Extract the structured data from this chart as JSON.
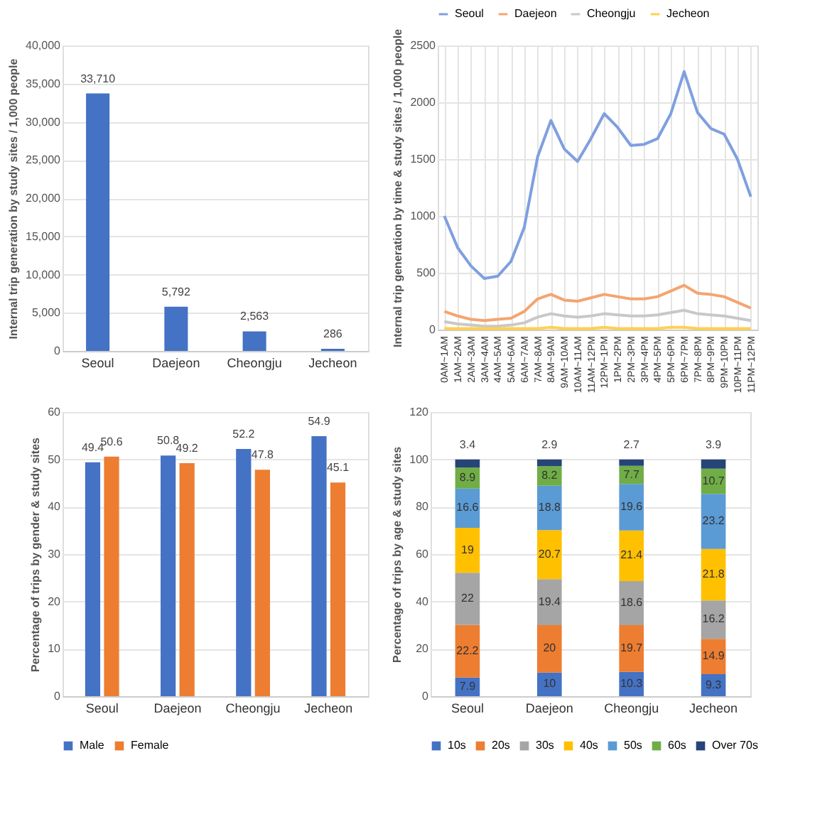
{
  "chart_data": [
    {
      "type": "bar",
      "ylabel": "Internal trip generation by study sites / 1,000 people",
      "categories": [
        "Seoul",
        "Daejeon",
        "Cheongju",
        "Jecheon"
      ],
      "series": [
        {
          "color": "#4472c4",
          "values": [
            33710,
            5792,
            2563,
            286
          ]
        }
      ],
      "value_labels": [
        "33,710",
        "5,792",
        "2,563",
        "286"
      ],
      "ylim": [
        0,
        40000
      ],
      "yticks": [
        0,
        {
          "value": 5000,
          "label": "5,000"
        },
        {
          "value": 10000,
          "label": "10,000"
        },
        {
          "value": 15000,
          "label": "15,000"
        },
        {
          "value": 20000,
          "label": "20,000"
        },
        {
          "value": 25000,
          "label": "25,000"
        },
        {
          "value": 30000,
          "label": "30,000"
        },
        {
          "value": 35000,
          "label": "35,000"
        },
        {
          "value": 40000,
          "label": "40,000"
        }
      ],
      "grid": "y",
      "legend": false
    },
    {
      "type": "line",
      "ylabel": "Internal trip generation by time & study sites / 1,000 people",
      "categories": [
        "0AM~1AM",
        "1AM~2AM",
        "2AM~3AM",
        "3AM~4AM",
        "4AM~5AM",
        "5AM~6AM",
        "6AM~7AM",
        "7AM~8AM",
        "8AM~9AM",
        "9AM~10AM",
        "10AM~11AM",
        "11AM~12PM",
        "12PM~1PM",
        "1PM~2PM",
        "2PM~3PM",
        "3PM~4PM",
        "4PM~5PM",
        "5PM~6PM",
        "6PM~7PM",
        "7PM~8PM",
        "8PM~9PM",
        "9PM~10PM",
        "10PM~11PM",
        "11PM~12PM"
      ],
      "series": [
        {
          "name": "Seoul",
          "color": "#7f9fdf",
          "values": [
            1000,
            720,
            560,
            450,
            470,
            600,
            900,
            1520,
            1840,
            1590,
            1480,
            1680,
            1900,
            1780,
            1620,
            1630,
            1680,
            1900,
            2270,
            1910,
            1770,
            1720,
            1500,
            1170
          ]
        },
        {
          "name": "Daejeon",
          "color": "#f4a470",
          "values": [
            160,
            120,
            90,
            80,
            90,
            100,
            160,
            270,
            310,
            260,
            250,
            280,
            310,
            290,
            270,
            270,
            290,
            340,
            390,
            320,
            310,
            290,
            240,
            190
          ]
        },
        {
          "name": "Cheongju",
          "color": "#c8c8c8",
          "values": [
            70,
            50,
            40,
            30,
            30,
            40,
            60,
            110,
            140,
            120,
            110,
            120,
            140,
            130,
            120,
            120,
            130,
            150,
            170,
            140,
            130,
            120,
            100,
            80
          ]
        },
        {
          "name": "Jecheon",
          "color": "#ffd050",
          "values": [
            10,
            10,
            10,
            10,
            10,
            10,
            10,
            10,
            20,
            10,
            10,
            10,
            20,
            10,
            10,
            10,
            10,
            20,
            20,
            10,
            10,
            10,
            10,
            10
          ]
        }
      ],
      "ylim": [
        0,
        2500
      ],
      "yticks": [
        0,
        500,
        1000,
        1500,
        2000,
        2500
      ],
      "grid": true,
      "legend": "top",
      "marker": "none"
    },
    {
      "type": "bar",
      "ylabel": "Percentage of trips by gender & study sites",
      "categories": [
        "Seoul",
        "Daejeon",
        "Cheongju",
        "Jecheon"
      ],
      "series": [
        {
          "name": "Male",
          "color": "#4472c4",
          "values": [
            49.4,
            50.8,
            52.2,
            54.9
          ]
        },
        {
          "name": "Female",
          "color": "#ed7d31",
          "values": [
            50.6,
            49.2,
            47.8,
            45.1
          ]
        }
      ],
      "data_labels": true,
      "ylim": [
        0,
        60
      ],
      "yticks": [
        0,
        10,
        20,
        30,
        40,
        50,
        60
      ],
      "grid": "y",
      "legend": "bottom"
    },
    {
      "type": "bar",
      "stacked": true,
      "ylabel": "Percentage of trips by age & study sites",
      "categories": [
        "Seoul",
        "Daejeon",
        "Cheongju",
        "Jecheon"
      ],
      "series": [
        {
          "name": "10s",
          "color": "#4472c4",
          "values": [
            7.9,
            10,
            10.3,
            9.3
          ]
        },
        {
          "name": "20s",
          "color": "#ed7d31",
          "values": [
            22.2,
            20,
            19.7,
            14.9
          ]
        },
        {
          "name": "30s",
          "color": "#a5a5a5",
          "values": [
            22,
            19.4,
            18.6,
            16.2
          ]
        },
        {
          "name": "40s",
          "color": "#ffc000",
          "values": [
            19,
            20.7,
            21.4,
            21.8
          ]
        },
        {
          "name": "50s",
          "color": "#5b9bd5",
          "values": [
            16.6,
            18.8,
            19.6,
            23.2
          ]
        },
        {
          "name": "60s",
          "color": "#70ad47",
          "values": [
            8.9,
            8.2,
            7.7,
            10.7
          ]
        },
        {
          "name": "Over 70s",
          "color": "#264478",
          "values": [
            3.4,
            2.9,
            2.7,
            3.9
          ]
        }
      ],
      "data_labels": true,
      "ylim": [
        0,
        120
      ],
      "yticks": [
        0,
        20,
        40,
        60,
        80,
        100,
        120
      ],
      "grid": "y",
      "legend": "bottom"
    }
  ]
}
